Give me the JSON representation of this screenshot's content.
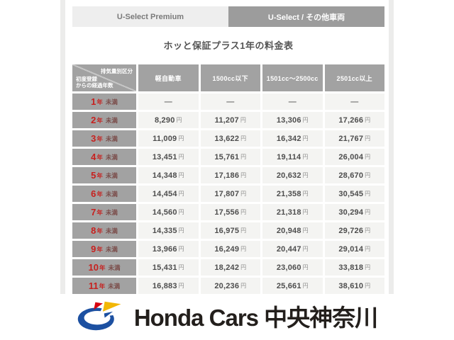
{
  "tabs": [
    {
      "label": "U-Select Premium",
      "active": false
    },
    {
      "label": "U-Select / その他車両",
      "active": true
    }
  ],
  "title": "ホッと保証プラス1年の料金表",
  "table": {
    "corner_top_right": "排気量別区分",
    "corner_bottom_left": "初度登録\nからの経過年数",
    "columns": [
      "軽自動車",
      "1500cc以下",
      "1501cc～2500cc",
      "2501cc以上"
    ],
    "year_unit": "年",
    "less_than_label": "未満",
    "currency": "円",
    "empty_value": "—",
    "rows": [
      {
        "years": "1",
        "values": [
          null,
          null,
          null,
          null
        ]
      },
      {
        "years": "2",
        "values": [
          "8,290",
          "11,207",
          "13,306",
          "17,266"
        ]
      },
      {
        "years": "3",
        "values": [
          "11,009",
          "13,622",
          "16,342",
          "21,767"
        ]
      },
      {
        "years": "4",
        "values": [
          "13,451",
          "15,761",
          "19,114",
          "26,004"
        ]
      },
      {
        "years": "5",
        "values": [
          "14,348",
          "17,186",
          "20,632",
          "28,670"
        ]
      },
      {
        "years": "6",
        "values": [
          "14,454",
          "17,807",
          "21,358",
          "30,545"
        ]
      },
      {
        "years": "7",
        "values": [
          "14,560",
          "17,556",
          "21,318",
          "30,294"
        ]
      },
      {
        "years": "8",
        "values": [
          "14,335",
          "16,975",
          "20,948",
          "29,726"
        ]
      },
      {
        "years": "9",
        "values": [
          "13,966",
          "16,249",
          "20,447",
          "29,014"
        ]
      },
      {
        "years": "10",
        "values": [
          "15,431",
          "18,242",
          "23,060",
          "33,818"
        ]
      },
      {
        "years": "11",
        "values": [
          "16,883",
          "20,236",
          "25,661",
          "38,610"
        ]
      }
    ]
  },
  "footer": {
    "brand": "Honda Cars 中央神奈川"
  },
  "colors": {
    "accent_red": "#c7201e",
    "header_gray": "#a2a2a2",
    "active_tab_gray": "#9c9c9c",
    "inactive_tab_gray": "#eeeeee",
    "cell_bg": "#f4f4f2",
    "honda_blue": "#1c50a1",
    "honda_red": "#d7000f",
    "honda_yellow": "#f2b705"
  }
}
